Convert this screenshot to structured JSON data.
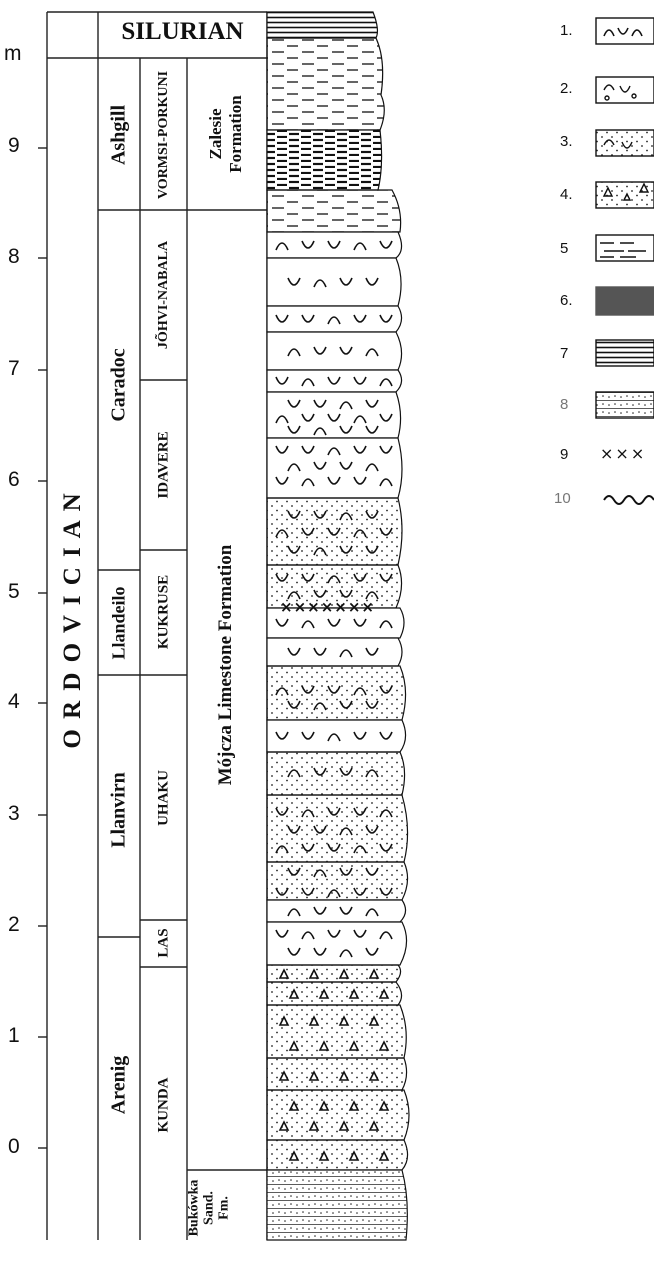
{
  "header": {
    "silurian": "SILURIAN"
  },
  "scale": {
    "unit": "m",
    "ticks": [
      "9",
      "8",
      "7",
      "6",
      "5",
      "4",
      "3",
      "2",
      "1",
      "0"
    ]
  },
  "columns": {
    "system": "O R D O V I C I A N",
    "series": [
      "Ashgill",
      "Caradoc",
      "Llandeilo",
      "Llanvirn",
      "Arenig"
    ],
    "stages": [
      "VORMSI-PORKUNI",
      "JÕHVI-NABALA",
      "IDAVERE",
      "KUKRUSE",
      "UHAKU",
      "LAS",
      "KUNDA"
    ],
    "formations": {
      "zalesie": "Zalesie Formation",
      "mojcza": "Mójcza Limestone Formation",
      "bukowka": "Bukówka Sand. Fm."
    }
  },
  "legend": {
    "numbers": [
      "1.",
      "2.",
      "3.",
      "4.",
      "5",
      "6.",
      "7",
      "8",
      "9",
      "10"
    ],
    "item9": "×××"
  }
}
